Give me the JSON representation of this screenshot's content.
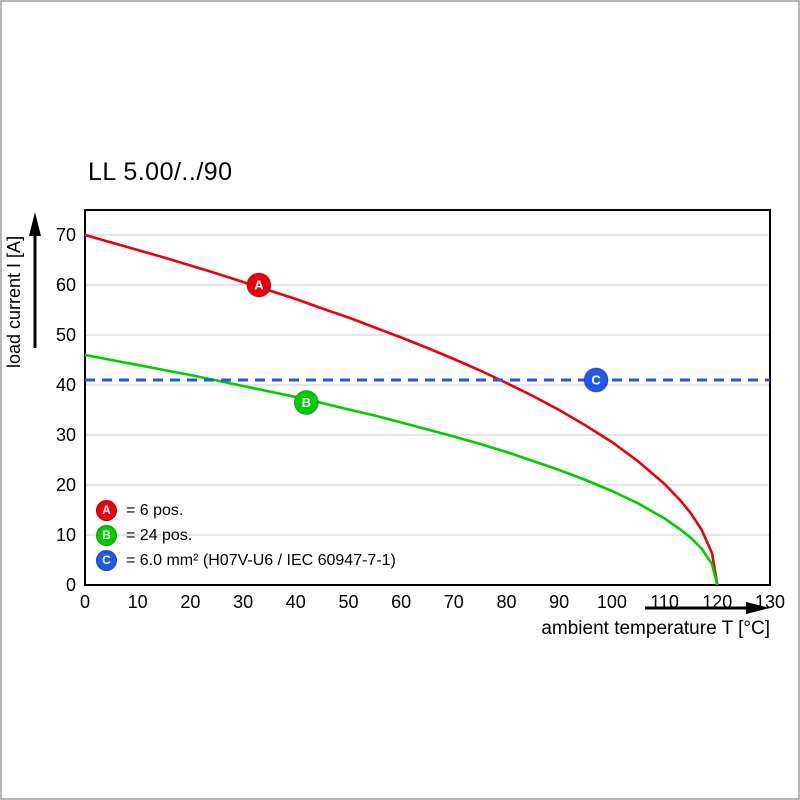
{
  "chart_data": {
    "type": "line",
    "title": "LL 5.00/../90",
    "xlabel": "ambient temperature T [°C]",
    "ylabel": "load current I [A]",
    "xlim": [
      0,
      130
    ],
    "ylim": [
      0,
      75
    ],
    "x_ticks": [
      0,
      10,
      20,
      30,
      40,
      50,
      60,
      70,
      80,
      90,
      100,
      110,
      120,
      130
    ],
    "y_ticks": [
      0,
      10,
      20,
      30,
      40,
      50,
      60,
      70
    ],
    "grid": "horizontal",
    "grid_color": "#c9c9c9",
    "axis_color": "#000000",
    "legend_position": "lower-left",
    "series": [
      {
        "name": "A",
        "label": "= 6 pos.",
        "color": "#e8000e",
        "style": "solid",
        "marker": {
          "x": 33,
          "y": 60
        },
        "points": [
          [
            0,
            70
          ],
          [
            5,
            68.5
          ],
          [
            10,
            67
          ],
          [
            15,
            65.5
          ],
          [
            20,
            63.9
          ],
          [
            25,
            62.3
          ],
          [
            30,
            60.6
          ],
          [
            35,
            58.9
          ],
          [
            40,
            57.2
          ],
          [
            45,
            55.3
          ],
          [
            50,
            53.5
          ],
          [
            55,
            51.5
          ],
          [
            60,
            49.5
          ],
          [
            65,
            47.4
          ],
          [
            70,
            45.2
          ],
          [
            75,
            42.9
          ],
          [
            80,
            40.4
          ],
          [
            85,
            37.8
          ],
          [
            90,
            35
          ],
          [
            95,
            31.9
          ],
          [
            100,
            28.6
          ],
          [
            105,
            24.7
          ],
          [
            110,
            20.2
          ],
          [
            113,
            16.9
          ],
          [
            115,
            14.3
          ],
          [
            117,
            11.1
          ],
          [
            119,
            6.4
          ],
          [
            120,
            0
          ]
        ]
      },
      {
        "name": "B",
        "label": "= 24 pos.",
        "color": "#00cc00",
        "style": "solid",
        "marker": {
          "x": 42,
          "y": 36.5
        },
        "points": [
          [
            0,
            46
          ],
          [
            5,
            45
          ],
          [
            10,
            44
          ],
          [
            15,
            43
          ],
          [
            20,
            42
          ],
          [
            25,
            40.9
          ],
          [
            30,
            39.8
          ],
          [
            35,
            38.7
          ],
          [
            40,
            37.6
          ],
          [
            45,
            36.4
          ],
          [
            50,
            35.1
          ],
          [
            55,
            33.9
          ],
          [
            60,
            32.5
          ],
          [
            65,
            31.1
          ],
          [
            70,
            29.7
          ],
          [
            75,
            28.2
          ],
          [
            80,
            26.6
          ],
          [
            85,
            24.8
          ],
          [
            90,
            23
          ],
          [
            95,
            21
          ],
          [
            100,
            18.8
          ],
          [
            105,
            16.3
          ],
          [
            110,
            13.3
          ],
          [
            113,
            11.1
          ],
          [
            115,
            9.4
          ],
          [
            117,
            7.3
          ],
          [
            119,
            4.2
          ],
          [
            120,
            0
          ]
        ]
      },
      {
        "name": "C",
        "label": "= 6.0 mm² (H07V-U6 / IEC 60947-7-1)",
        "color": "#2058e8",
        "style": "dashed",
        "marker": {
          "x": 97,
          "y": 41
        },
        "points": [
          [
            0,
            41
          ],
          [
            130,
            41
          ]
        ]
      }
    ]
  }
}
